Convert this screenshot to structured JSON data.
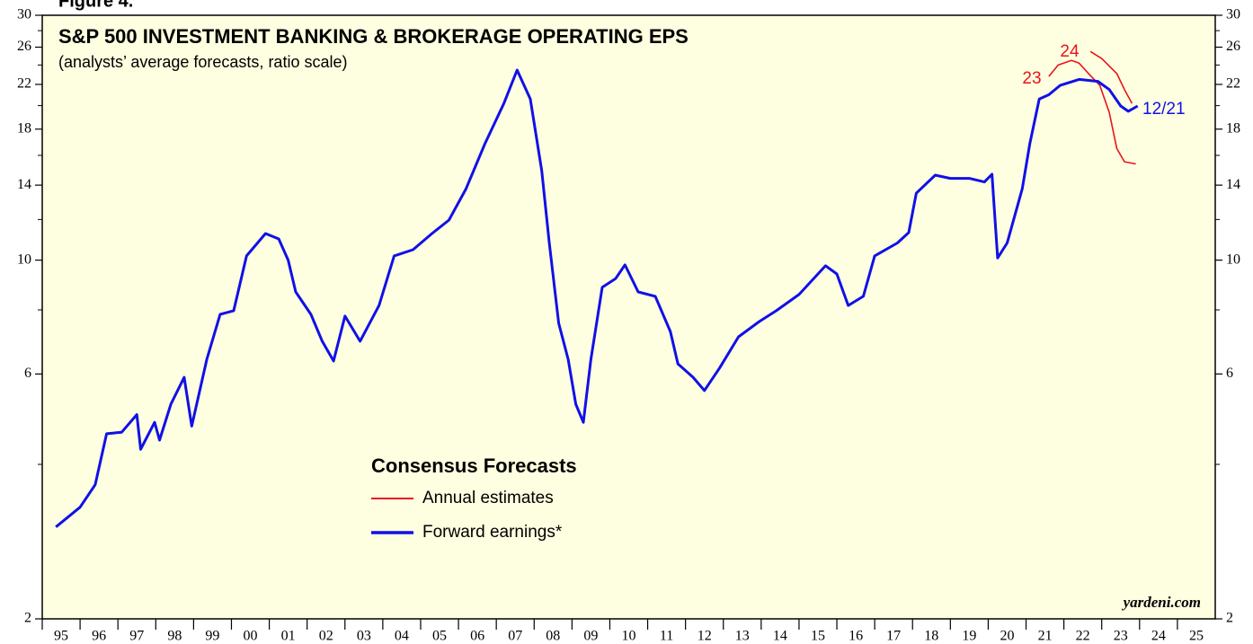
{
  "chart_data": {
    "type": "line",
    "figure_label": "Figure 4.",
    "title": "S&P 500 INVESTMENT BANKING & BROKERAGE OPERATING EPS",
    "subtitle": "(analysts’ average forecasts, ratio scale)",
    "legend_title": "Consensus Forecasts",
    "source": "yardeni.com",
    "annotations": [
      "23",
      "24",
      "12/21"
    ],
    "log_scale": true,
    "ylim": [
      2,
      30
    ],
    "yticks": [
      2,
      6,
      10,
      14,
      18,
      22,
      26,
      30
    ],
    "yticks_minor": [
      4,
      8,
      12,
      16,
      20,
      24,
      28
    ],
    "xlim": [
      1995,
      2026
    ],
    "xticks": [
      {
        "value": 1995.5,
        "label": "95"
      },
      {
        "value": 1996.5,
        "label": "96"
      },
      {
        "value": 1997.5,
        "label": "97"
      },
      {
        "value": 1998.5,
        "label": "98"
      },
      {
        "value": 1999.5,
        "label": "99"
      },
      {
        "value": 2000.5,
        "label": "00"
      },
      {
        "value": 2001.5,
        "label": "01"
      },
      {
        "value": 2002.5,
        "label": "02"
      },
      {
        "value": 2003.5,
        "label": "03"
      },
      {
        "value": 2004.5,
        "label": "04"
      },
      {
        "value": 2005.5,
        "label": "05"
      },
      {
        "value": 2006.5,
        "label": "06"
      },
      {
        "value": 2007.5,
        "label": "07"
      },
      {
        "value": 2008.5,
        "label": "08"
      },
      {
        "value": 2009.5,
        "label": "09"
      },
      {
        "value": 2010.5,
        "label": "10"
      },
      {
        "value": 2011.5,
        "label": "11"
      },
      {
        "value": 2012.5,
        "label": "12"
      },
      {
        "value": 2013.5,
        "label": "13"
      },
      {
        "value": 2014.5,
        "label": "14"
      },
      {
        "value": 2015.5,
        "label": "15"
      },
      {
        "value": 2016.5,
        "label": "16"
      },
      {
        "value": 2017.5,
        "label": "17"
      },
      {
        "value": 2018.5,
        "label": "18"
      },
      {
        "value": 2019.5,
        "label": "19"
      },
      {
        "value": 2020.5,
        "label": "20"
      },
      {
        "value": 2021.5,
        "label": "21"
      },
      {
        "value": 2022.5,
        "label": "22"
      },
      {
        "value": 2023.5,
        "label": "23"
      },
      {
        "value": 2024.5,
        "label": "24"
      },
      {
        "value": 2025.5,
        "label": "25"
      }
    ],
    "series": [
      {
        "name": "Annual estimates",
        "color": "#e8141c",
        "x": [
          2021.6,
          2021.85,
          2022.2,
          2022.4,
          2022.65,
          2022.95,
          2023.2,
          2023.4,
          2023.6,
          2023.9,
          null,
          2022.7,
          2023.0,
          2023.4,
          2023.6,
          2023.8
        ],
        "values": [
          22.8,
          24.0,
          24.5,
          24.2,
          23.1,
          21.9,
          19.4,
          16.5,
          15.55,
          15.4,
          null,
          25.5,
          24.7,
          23.1,
          21.5,
          20.2
        ]
      },
      {
        "name": "Forward earnings*",
        "color": "#1010e8",
        "x": [
          1995.36,
          1996.0,
          1996.4,
          1996.7,
          1997.1,
          1997.5,
          1997.6,
          1997.97,
          1998.1,
          1998.4,
          1998.75,
          1998.95,
          1999.35,
          1999.7,
          2000.06,
          2000.4,
          2000.9,
          2001.25,
          2001.5,
          2001.7,
          2002.1,
          2002.4,
          2002.7,
          2003.0,
          2003.4,
          2003.9,
          2004.3,
          2004.8,
          2005.3,
          2005.75,
          2006.2,
          2006.7,
          2007.2,
          2007.55,
          2007.9,
          2008.2,
          2008.4,
          2008.65,
          2008.9,
          2009.1,
          2009.3,
          2009.5,
          2009.8,
          2010.15,
          2010.4,
          2010.75,
          2011.2,
          2011.6,
          2011.8,
          2012.2,
          2012.5,
          2012.9,
          2013.4,
          2013.95,
          2014.4,
          2015.0,
          2015.7,
          2016.0,
          2016.3,
          2016.7,
          2017.0,
          2017.6,
          2017.9,
          2018.1,
          2018.6,
          2019.0,
          2019.5,
          2019.9,
          2020.1,
          2020.25,
          2020.5,
          2020.7,
          2020.9,
          2021.1,
          2021.35,
          2021.6,
          2021.9,
          2022.4,
          2022.9,
          2023.2,
          2023.5,
          2023.7,
          2023.95
        ],
        "values": [
          3.02,
          3.3,
          3.65,
          4.59,
          4.62,
          5.0,
          4.28,
          4.83,
          4.46,
          5.24,
          5.91,
          4.75,
          6.41,
          7.84,
          7.97,
          10.19,
          11.27,
          11.0,
          10.0,
          8.67,
          7.84,
          6.95,
          6.36,
          7.78,
          6.95,
          8.16,
          10.19,
          10.48,
          11.27,
          11.97,
          13.78,
          16.86,
          20.2,
          23.46,
          20.6,
          14.94,
          10.8,
          7.53,
          6.41,
          5.24,
          4.83,
          6.41,
          8.85,
          9.2,
          9.79,
          8.67,
          8.5,
          7.26,
          6.28,
          5.91,
          5.57,
          6.16,
          7.09,
          7.59,
          7.97,
          8.57,
          9.75,
          9.4,
          8.16,
          8.5,
          10.19,
          10.8,
          11.32,
          13.5,
          14.64,
          14.43,
          14.43,
          14.2,
          14.7,
          10.1,
          10.8,
          12.2,
          13.78,
          16.86,
          20.6,
          21.0,
          21.9,
          22.5,
          22.3,
          21.5,
          19.97,
          19.5,
          19.97
        ]
      }
    ]
  }
}
